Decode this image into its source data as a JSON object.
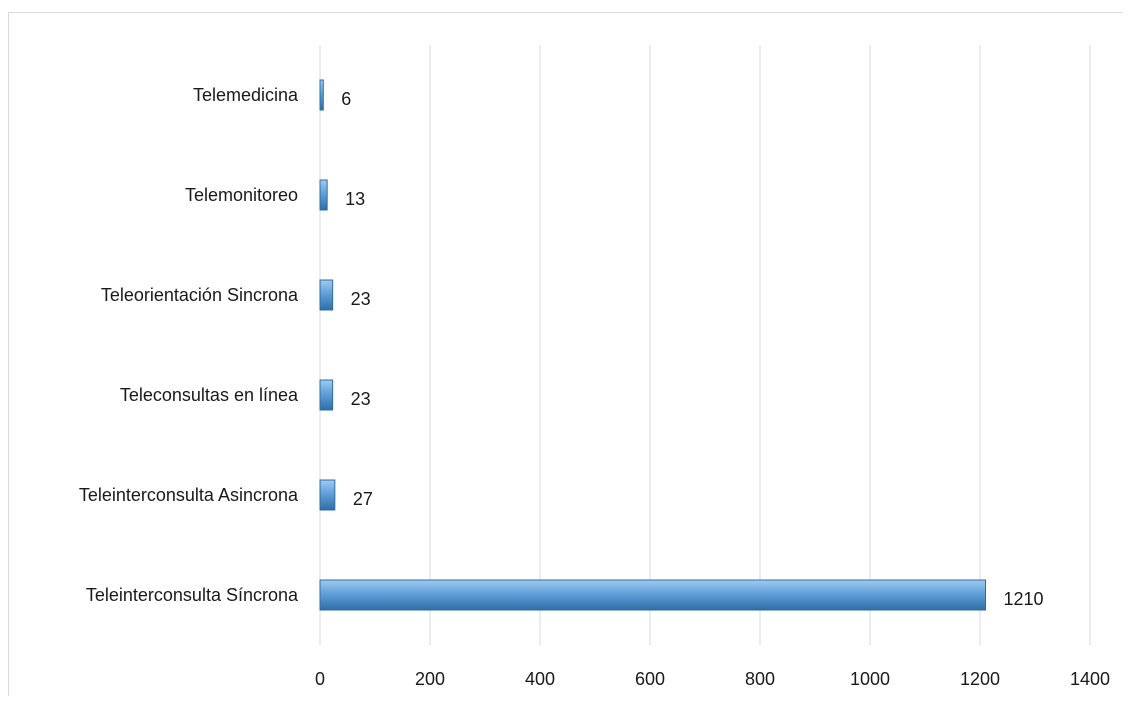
{
  "chart_data": {
    "type": "bar",
    "orientation": "horizontal",
    "categories": [
      "Telemedicina",
      "Telemonitoreo",
      "Teleorientación Sincrona",
      "Teleconsultas en línea",
      "Teleinterconsulta Asincrona",
      "Teleinterconsulta Síncrona"
    ],
    "values": [
      6,
      13,
      23,
      23,
      27,
      1210
    ],
    "xlim": [
      0,
      1400
    ],
    "xticks": [
      "0",
      "200",
      "400",
      "600",
      "800",
      "1000",
      "1200",
      "1400"
    ],
    "grid": true,
    "legend": "none",
    "colors": {
      "bar_main": "#5b9bd5",
      "bar_light": "#9fcaf0",
      "bar_dark": "#2e6da4",
      "grid": "#d9d9d9"
    }
  }
}
